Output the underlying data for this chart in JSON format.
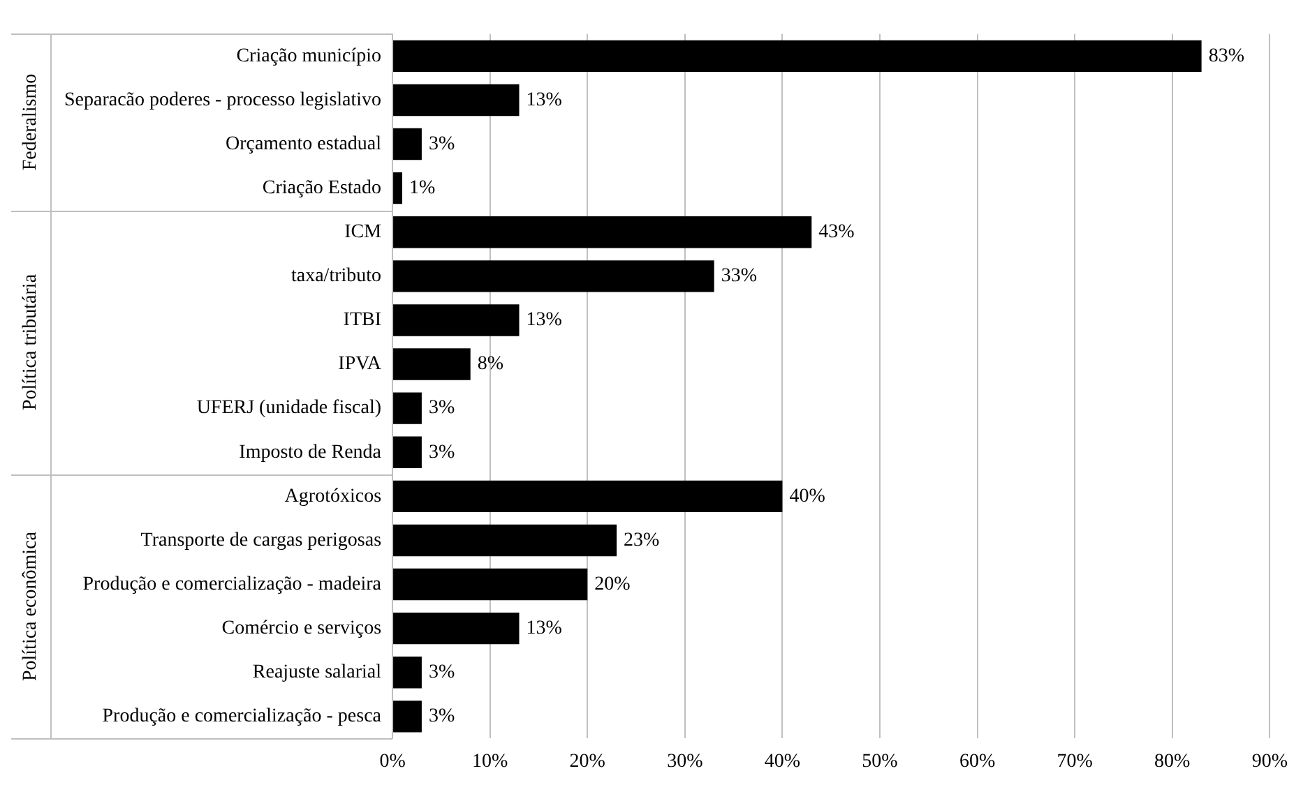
{
  "chart_data": {
    "type": "bar",
    "orientation": "horizontal",
    "categories": [
      "Criação município",
      "Separacão poderes - processo legislativo",
      "Orçamento estadual",
      "Criação Estado",
      "ICM",
      "taxa/tributo",
      "ITBI",
      "IPVA",
      "UFERJ (unidade fiscal)",
      "Imposto de Renda",
      "Agrotóxicos",
      "Transporte de cargas perigosas",
      "Produção e comercialização - madeira",
      "Comércio e serviços",
      "Reajuste salarial",
      "Produção e comercialização - pesca"
    ],
    "values": [
      83,
      13,
      3,
      1,
      43,
      33,
      13,
      8,
      3,
      3,
      40,
      23,
      20,
      13,
      3,
      3
    ],
    "value_labels": [
      "83%",
      "13%",
      "3%",
      "1%",
      "43%",
      "33%",
      "13%",
      "8%",
      "3%",
      "3%",
      "40%",
      "23%",
      "20%",
      "13%",
      "3%",
      "3%"
    ],
    "color": "#000000",
    "xlim": [
      0,
      90
    ],
    "xticks": [
      {
        "value": 0,
        "label": "0%"
      },
      {
        "value": 10,
        "label": "10%"
      },
      {
        "value": 20,
        "label": "20%"
      },
      {
        "value": 30,
        "label": "30%"
      },
      {
        "value": 40,
        "label": "40%"
      },
      {
        "value": 50,
        "label": "50%"
      },
      {
        "value": 60,
        "label": "60%"
      },
      {
        "value": 70,
        "label": "70%"
      },
      {
        "value": 80,
        "label": "80%"
      },
      {
        "value": 90,
        "label": "90%"
      }
    ],
    "grid": "x",
    "annotations": [
      "Federalismo",
      "Política tributária",
      "Política econômica"
    ]
  }
}
